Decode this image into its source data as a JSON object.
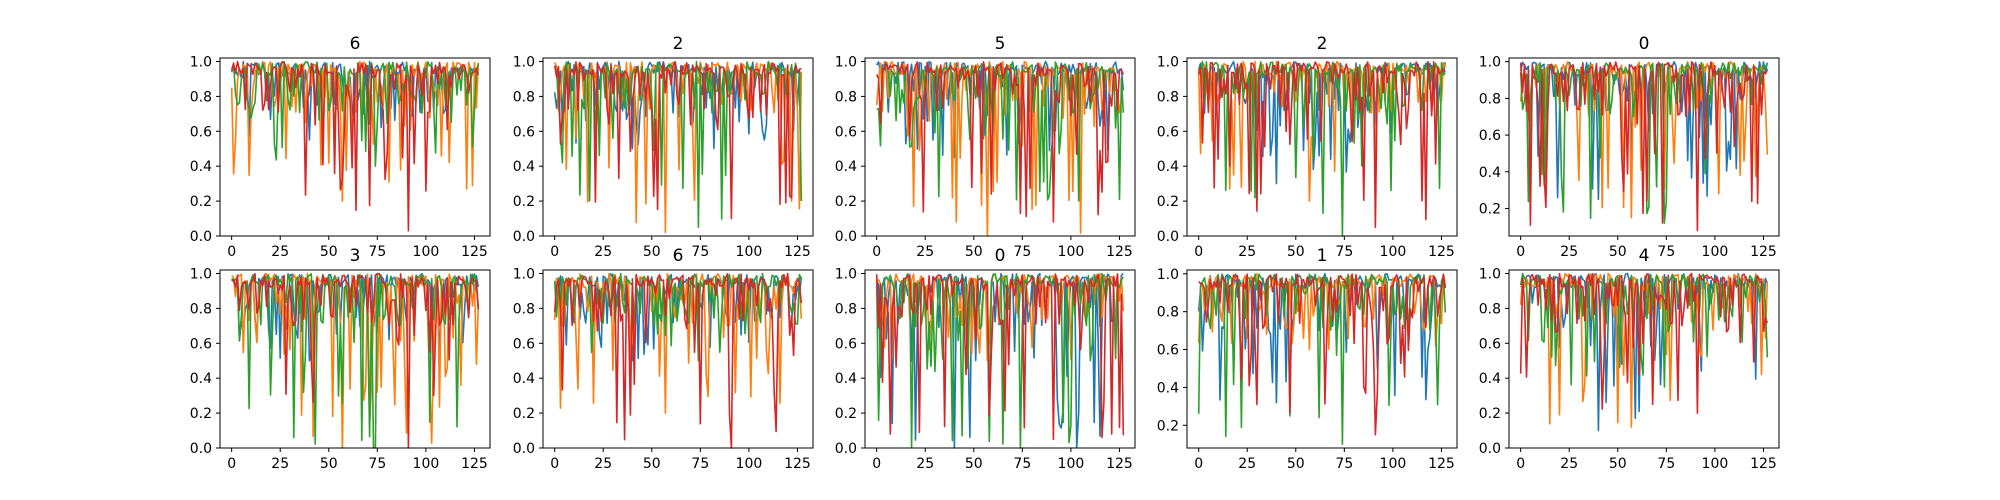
{
  "figure": {
    "rows": 2,
    "cols": 5
  },
  "colors": [
    "#1f77b4",
    "#ff7f0e",
    "#2ca02c",
    "#d62728"
  ],
  "x_ticks": [
    0,
    25,
    50,
    75,
    100,
    125
  ],
  "chart_data": [
    {
      "type": "line",
      "title": "6",
      "xlim": [
        -6,
        133
      ],
      "ylim": [
        0,
        1.02
      ],
      "yticks": [
        "0.0",
        "0.2",
        "0.4",
        "0.6",
        "0.8",
        "1.0"
      ],
      "ytick_values": [
        0,
        0.2,
        0.4,
        0.6,
        0.8,
        1.0
      ],
      "x_range": [
        0,
        127
      ],
      "num_series": 4,
      "n_points": 128,
      "min_value": 0.03,
      "max_value": 1.0,
      "series": [
        {
          "min": 0.55
        },
        {
          "min": 0.2
        },
        {
          "min": 0.4
        },
        {
          "min": 0.03
        }
      ]
    },
    {
      "type": "line",
      "title": "2",
      "xlim": [
        -6,
        133
      ],
      "ylim": [
        0,
        1.02
      ],
      "yticks": [
        "0.0",
        "0.2",
        "0.4",
        "0.6",
        "0.8",
        "1.0"
      ],
      "ytick_values": [
        0,
        0.2,
        0.4,
        0.6,
        0.8,
        1.0
      ],
      "x_range": [
        0,
        127
      ],
      "num_series": 4,
      "n_points": 128,
      "min_value": 0.02,
      "max_value": 1.0,
      "series": [
        {
          "min": 0.5
        },
        {
          "min": 0.02
        },
        {
          "min": 0.05
        },
        {
          "min": 0.1
        }
      ]
    },
    {
      "type": "line",
      "title": "5",
      "xlim": [
        -6,
        133
      ],
      "ylim": [
        0,
        1.02
      ],
      "yticks": [
        "0.0",
        "0.2",
        "0.4",
        "0.6",
        "0.8",
        "1.0"
      ],
      "ytick_values": [
        0,
        0.2,
        0.4,
        0.6,
        0.8,
        1.0
      ],
      "x_range": [
        0,
        127
      ],
      "num_series": 4,
      "n_points": 128,
      "min_value": 0.0,
      "max_value": 1.0,
      "series": [
        {
          "min": 0.45
        },
        {
          "min": 0.0
        },
        {
          "min": 0.2
        },
        {
          "min": 0.08
        }
      ]
    },
    {
      "type": "line",
      "title": "2",
      "xlim": [
        -6,
        133
      ],
      "ylim": [
        0,
        1.02
      ],
      "yticks": [
        "0.0",
        "0.2",
        "0.4",
        "0.6",
        "0.8",
        "1.0"
      ],
      "ytick_values": [
        0,
        0.2,
        0.4,
        0.6,
        0.8,
        1.0
      ],
      "x_range": [
        0,
        127
      ],
      "num_series": 4,
      "n_points": 128,
      "min_value": 0.0,
      "max_value": 1.0,
      "series": [
        {
          "min": 0.3
        },
        {
          "min": 0.2
        },
        {
          "min": 0.0
        },
        {
          "min": 0.05
        }
      ]
    },
    {
      "type": "line",
      "title": "0",
      "xlim": [
        -6,
        133
      ],
      "ylim": [
        0.05,
        1.02
      ],
      "yticks": [
        "0.2",
        "0.4",
        "0.6",
        "0.8",
        "1.0"
      ],
      "ytick_values": [
        0.2,
        0.4,
        0.6,
        0.8,
        1.0
      ],
      "x_range": [
        0,
        127
      ],
      "num_series": 4,
      "n_points": 128,
      "min_value": 0.08,
      "max_value": 1.0,
      "series": [
        {
          "min": 0.25
        },
        {
          "min": 0.15
        },
        {
          "min": 0.12
        },
        {
          "min": 0.08
        }
      ]
    },
    {
      "type": "line",
      "title": "3",
      "xlim": [
        -6,
        133
      ],
      "ylim": [
        0,
        1.02
      ],
      "yticks": [
        "0.0",
        "0.2",
        "0.4",
        "0.6",
        "0.8",
        "1.0"
      ],
      "ytick_values": [
        0,
        0.2,
        0.4,
        0.6,
        0.8,
        1.0
      ],
      "x_range": [
        0,
        127
      ],
      "num_series": 4,
      "n_points": 128,
      "min_value": 0.0,
      "max_value": 1.0,
      "series": [
        {
          "min": 0.5
        },
        {
          "min": 0.0
        },
        {
          "min": 0.0
        },
        {
          "min": 0.0
        }
      ]
    },
    {
      "type": "line",
      "title": "6",
      "xlim": [
        -6,
        133
      ],
      "ylim": [
        0,
        1.02
      ],
      "yticks": [
        "0.0",
        "0.2",
        "0.4",
        "0.6",
        "0.8",
        "1.0"
      ],
      "ytick_values": [
        0,
        0.2,
        0.4,
        0.6,
        0.8,
        1.0
      ],
      "x_range": [
        0,
        127
      ],
      "num_series": 4,
      "n_points": 128,
      "min_value": 0.0,
      "max_value": 1.0,
      "series": [
        {
          "min": 0.5
        },
        {
          "min": 0.2
        },
        {
          "min": 0.5
        },
        {
          "min": 0.0
        }
      ]
    },
    {
      "type": "line",
      "title": "0",
      "xlim": [
        -6,
        133
      ],
      "ylim": [
        0,
        1.02
      ],
      "yticks": [
        "0.0",
        "0.2",
        "0.4",
        "0.6",
        "0.8",
        "1.0"
      ],
      "ytick_values": [
        0,
        0.2,
        0.4,
        0.6,
        0.8,
        1.0
      ],
      "x_range": [
        0,
        127
      ],
      "num_series": 4,
      "n_points": 128,
      "min_value": 0.0,
      "max_value": 1.0,
      "series": [
        {
          "min": 0.0
        },
        {
          "min": 0.5
        },
        {
          "min": 0.0
        },
        {
          "min": 0.05
        }
      ]
    },
    {
      "type": "line",
      "title": "1",
      "xlim": [
        -6,
        133
      ],
      "ylim": [
        0.08,
        1.02
      ],
      "yticks": [
        "0.2",
        "0.4",
        "0.6",
        "0.8",
        "1.0"
      ],
      "ytick_values": [
        0.2,
        0.4,
        0.6,
        0.8,
        1.0
      ],
      "x_range": [
        0,
        127
      ],
      "num_series": 4,
      "n_points": 128,
      "min_value": 0.1,
      "max_value": 1.0,
      "series": [
        {
          "min": 0.32
        },
        {
          "min": 0.6
        },
        {
          "min": 0.1
        },
        {
          "min": 0.15
        }
      ]
    },
    {
      "type": "line",
      "title": "4",
      "xlim": [
        -6,
        133
      ],
      "ylim": [
        0,
        1.02
      ],
      "yticks": [
        "0.0",
        "0.2",
        "0.4",
        "0.6",
        "0.8",
        "1.0"
      ],
      "ytick_values": [
        0,
        0.2,
        0.4,
        0.6,
        0.8,
        1.0
      ],
      "x_range": [
        0,
        127
      ],
      "num_series": 4,
      "n_points": 128,
      "min_value": 0.1,
      "max_value": 1.0,
      "series": [
        {
          "min": 0.1
        },
        {
          "min": 0.12
        },
        {
          "min": 0.35
        },
        {
          "min": 0.2
        }
      ]
    }
  ]
}
